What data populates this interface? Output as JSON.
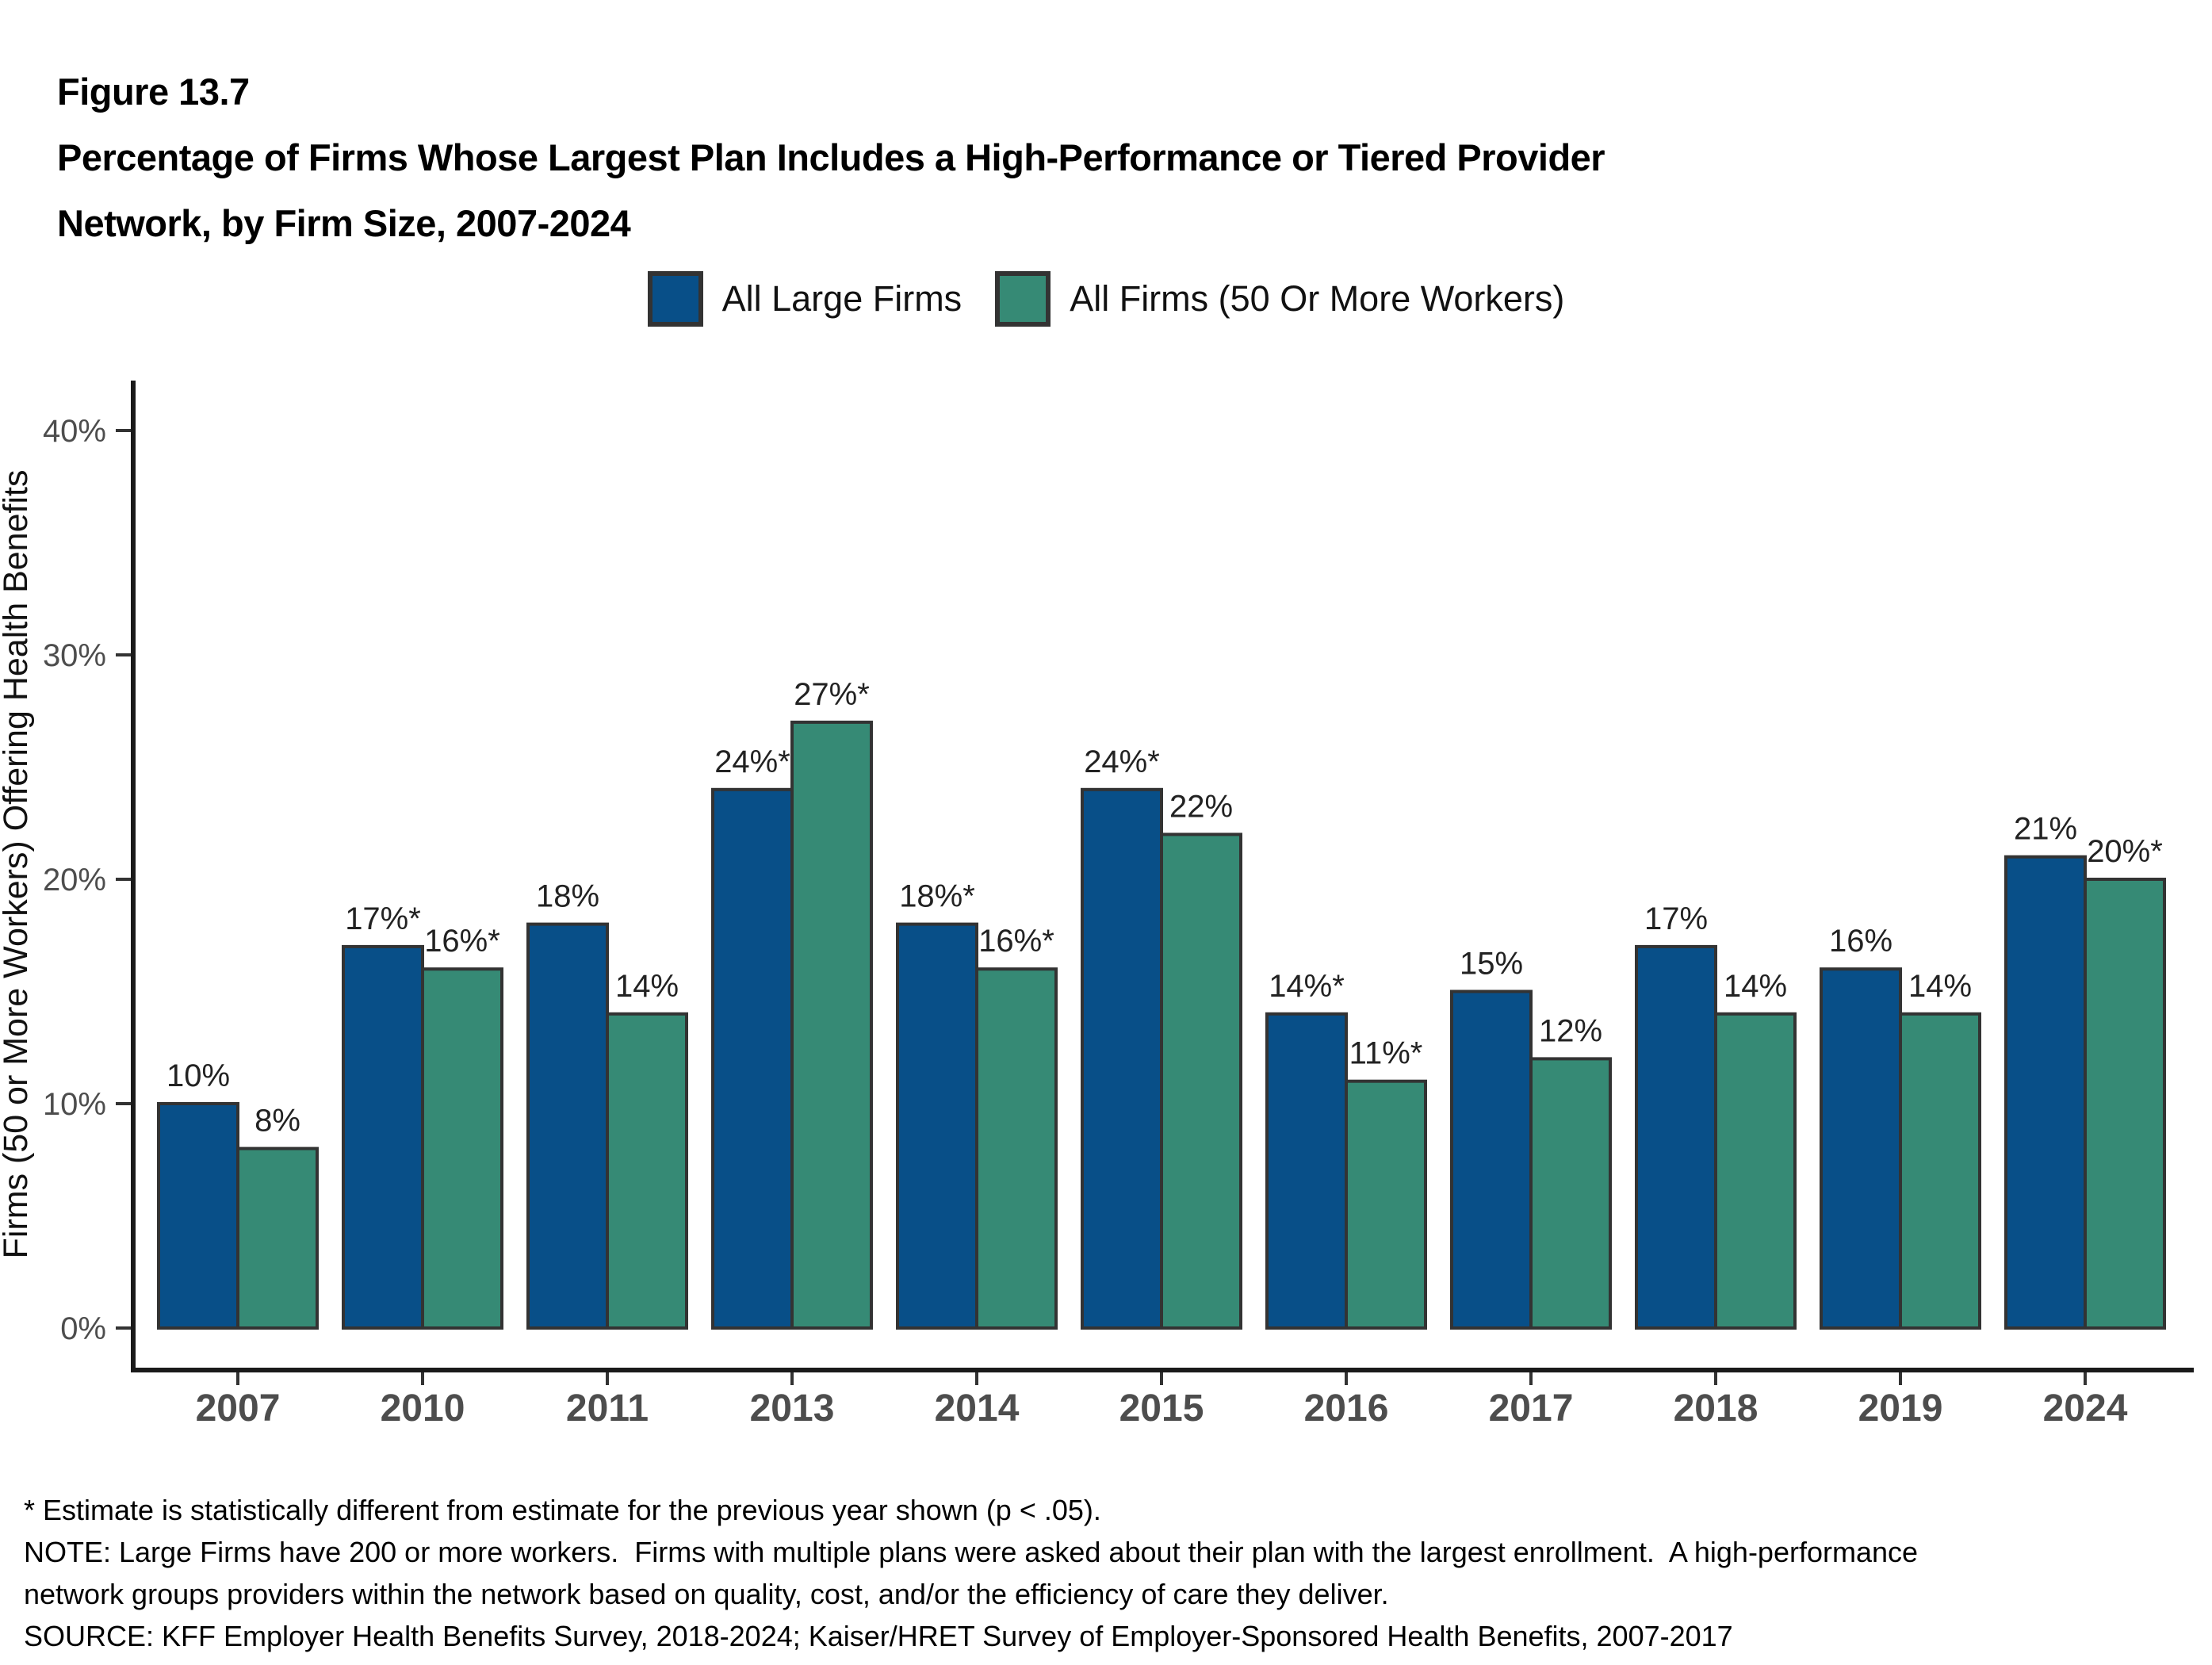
{
  "figure": {
    "label": "Figure 13.7",
    "title_line1": "Percentage of Firms Whose Largest Plan Includes a High-Performance or Tiered Provider",
    "title_line2": "Network, by Firm Size, 2007-2024"
  },
  "legend": [
    {
      "label": "All Large Firms",
      "color": "#084F88"
    },
    {
      "label": "All Firms (50 Or More Workers)",
      "color": "#368A75"
    }
  ],
  "chart_data": {
    "type": "bar",
    "title": "Percentage of Firms Whose Largest Plan Includes a High-Performance or Tiered Provider Network, by Firm Size, 2007-2024",
    "categories": [
      "2007",
      "2010",
      "2011",
      "2013",
      "2014",
      "2015",
      "2016",
      "2017",
      "2018",
      "2019",
      "2024"
    ],
    "series": [
      {
        "name": "All Large Firms",
        "color": "#084F88",
        "values": [
          10,
          17,
          18,
          24,
          18,
          24,
          14,
          15,
          17,
          16,
          21
        ],
        "labels": [
          "10%",
          "17%*",
          "18%",
          "24%*",
          "18%*",
          "24%*",
          "14%*",
          "15%",
          "17%",
          "16%",
          "21%"
        ]
      },
      {
        "name": "All Firms (50 Or More Workers)",
        "color": "#368A75",
        "values": [
          8,
          16,
          14,
          27,
          16,
          22,
          11,
          12,
          14,
          14,
          20
        ],
        "labels": [
          "8%",
          "16%*",
          "14%",
          "27%*",
          "16%*",
          "22%",
          "11%*",
          "12%",
          "14%",
          "14%",
          "20%*"
        ]
      }
    ],
    "xlabel": "",
    "ylabel": "Firms (50 or More Workers) Offering Health Benefits",
    "yticks": [
      0,
      10,
      20,
      30,
      40
    ],
    "ytick_labels": [
      "0%",
      "10%",
      "20%",
      "30%",
      "40%"
    ],
    "ylim": [
      0,
      42
    ],
    "grid": false,
    "legend_position": "top",
    "bar_border_color": "#333333",
    "axis_color": "#1a1a1a",
    "tick_color": "#333333",
    "tick_label_color": "#4d4d4d",
    "bar_label_color": "#222222"
  },
  "footnotes": {
    "lines": [
      "* Estimate is statistically different from estimate for the previous year shown (p < .05).",
      "NOTE: Large Firms have 200 or more workers.  Firms with multiple plans were asked about their plan with the largest enrollment.  A high-performance",
      "network groups providers within the network based on quality, cost, and/or the efficiency of care they deliver.",
      "SOURCE: KFF Employer Health Benefits Survey, 2018-2024; Kaiser/HRET Survey of Employer-Sponsored Health Benefits, 2007-2017"
    ]
  }
}
